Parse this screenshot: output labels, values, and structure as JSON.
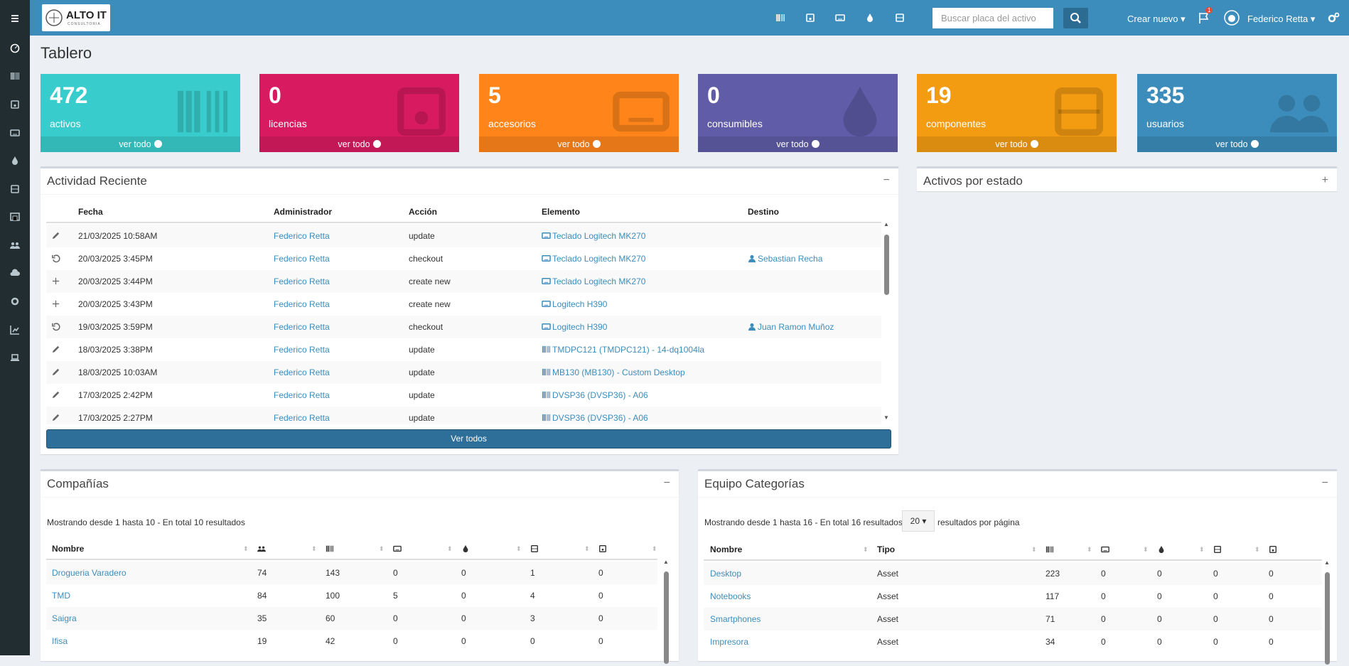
{
  "topbar": {
    "logo": "ALTO IT",
    "logo_sub": "CONSULTORIA",
    "search_placeholder": "Buscar placa del activo",
    "create": "Crear nuevo",
    "badge": "1",
    "user": "Federico Retta"
  },
  "page_title": "Tablero",
  "stats": [
    {
      "value": 472,
      "label": "activos",
      "link": "ver todo"
    },
    {
      "value": 0,
      "label": "licencias",
      "link": "ver todo"
    },
    {
      "value": 5,
      "label": "accesorios",
      "link": "ver todo"
    },
    {
      "value": 0,
      "label": "consumibles",
      "link": "ver todo"
    },
    {
      "value": 19,
      "label": "componentes",
      "link": "ver todo"
    },
    {
      "value": 335,
      "label": "usuarios",
      "link": "ver todo"
    }
  ],
  "activity": {
    "title": "Actividad Reciente",
    "headers": [
      "Fecha",
      "Administrador",
      "Acción",
      "Elemento",
      "Destino"
    ],
    "rows": [
      {
        "date": "21/03/2025 10:58AM",
        "admin": "Federico Retta",
        "action": "update",
        "item": "Teclado Logitech MK270"
      },
      {
        "date": "20/03/2025 3:45PM",
        "admin": "Federico Retta",
        "action": "checkout",
        "item": "Teclado Logitech MK270",
        "target": "Sebastian Recha"
      },
      {
        "date": "20/03/2025 3:44PM",
        "admin": "Federico Retta",
        "action": "create new",
        "item": "Teclado Logitech MK270"
      },
      {
        "date": "20/03/2025 3:43PM",
        "admin": "Federico Retta",
        "action": "create new",
        "item": "Logitech H390"
      },
      {
        "date": "19/03/2025 3:59PM",
        "admin": "Federico Retta",
        "action": "checkout",
        "item": "Logitech H390",
        "target": "Juan Ramon Muñoz"
      },
      {
        "date": "18/03/2025 3:38PM",
        "admin": "Federico Retta",
        "action": "update",
        "item": "TMDPC121 (TMDPC121) - 14-dq1004la"
      },
      {
        "date": "18/03/2025 10:03AM",
        "admin": "Federico Retta",
        "action": "update",
        "item": "MB130 (MB130) - Custom Desktop"
      },
      {
        "date": "17/03/2025 2:42PM",
        "admin": "Federico Retta",
        "action": "update",
        "item": "DVSP36 (DVSP36) - A06"
      },
      {
        "date": "17/03/2025 2:27PM",
        "admin": "Federico Retta",
        "action": "update",
        "item": "DVSP36 (DVSP36) - A06"
      }
    ],
    "button": "Ver todos"
  },
  "status_panel": {
    "title": "Activos por estado"
  },
  "companies": {
    "title": "Compañías",
    "info": "Mostrando desde 1 hasta 10 - En total 10 resultados",
    "header": "Nombre",
    "rows": [
      [
        "Drogueria Varadero",
        74,
        143,
        0,
        0,
        1,
        0
      ],
      [
        "TMD",
        84,
        100,
        5,
        0,
        4,
        0
      ],
      [
        "Saigra",
        35,
        60,
        0,
        0,
        3,
        0
      ],
      [
        "Ifisa",
        19,
        42,
        0,
        0,
        0,
        0
      ]
    ]
  },
  "categories": {
    "title": "Equipo Categorías",
    "info": "Mostrando desde 1 hasta 16 - En total 16 resultados",
    "page_size": "20",
    "per_page": "resultados por página",
    "headers": [
      "Nombre",
      "Tipo"
    ],
    "rows": [
      [
        "Desktop",
        "Asset",
        223,
        0,
        0,
        0,
        0
      ],
      [
        "Notebooks",
        "Asset",
        117,
        0,
        0,
        0,
        0
      ],
      [
        "Smartphones",
        "Asset",
        71,
        0,
        0,
        0,
        0
      ],
      [
        "Impresora",
        "Asset",
        34,
        0,
        0,
        0,
        0
      ]
    ]
  }
}
